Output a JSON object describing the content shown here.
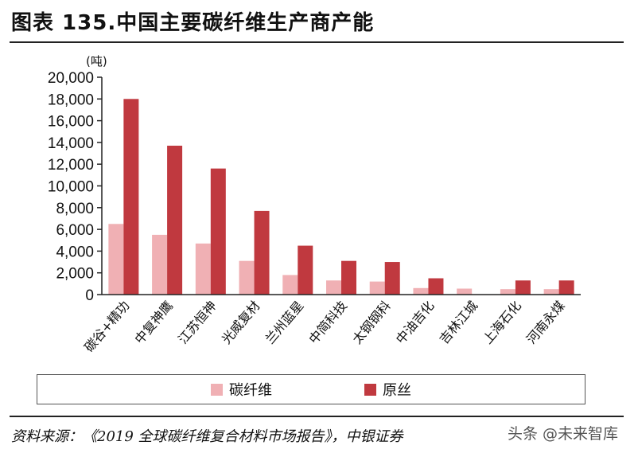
{
  "title": "图表 135.中国主要碳纤维生产商产能",
  "chart_data": {
    "type": "bar",
    "unit": "(吨)",
    "categories": [
      "碳谷+精功",
      "中复神鹰",
      "江苏恒神",
      "光威复材",
      "兰州蓝星",
      "中简科技",
      "太钢钢科",
      "中油吉化",
      "吉林江城",
      "上海石化",
      "河南永煤"
    ],
    "series": [
      {
        "name": "碳纤维",
        "color": "#f0b0b4",
        "values": [
          6500,
          5500,
          4700,
          3100,
          1800,
          1300,
          1200,
          600,
          550,
          500,
          500
        ]
      },
      {
        "name": "原丝",
        "color": "#c0393f",
        "values": [
          18000,
          13700,
          11600,
          7700,
          4500,
          3100,
          3000,
          1500,
          0,
          1300,
          1300
        ]
      }
    ],
    "ylim": [
      0,
      20000
    ],
    "yticks": [
      "0",
      "2,000",
      "4,000",
      "6,000",
      "8,000",
      "10,000",
      "12,000",
      "14,000",
      "16,000",
      "18,000",
      "20,000"
    ],
    "legend_position": "bottom"
  },
  "source": "资料来源：《2019 全球碳纤维复合材料市场报告》，中银证券",
  "watermark": "头条 @未来智库"
}
